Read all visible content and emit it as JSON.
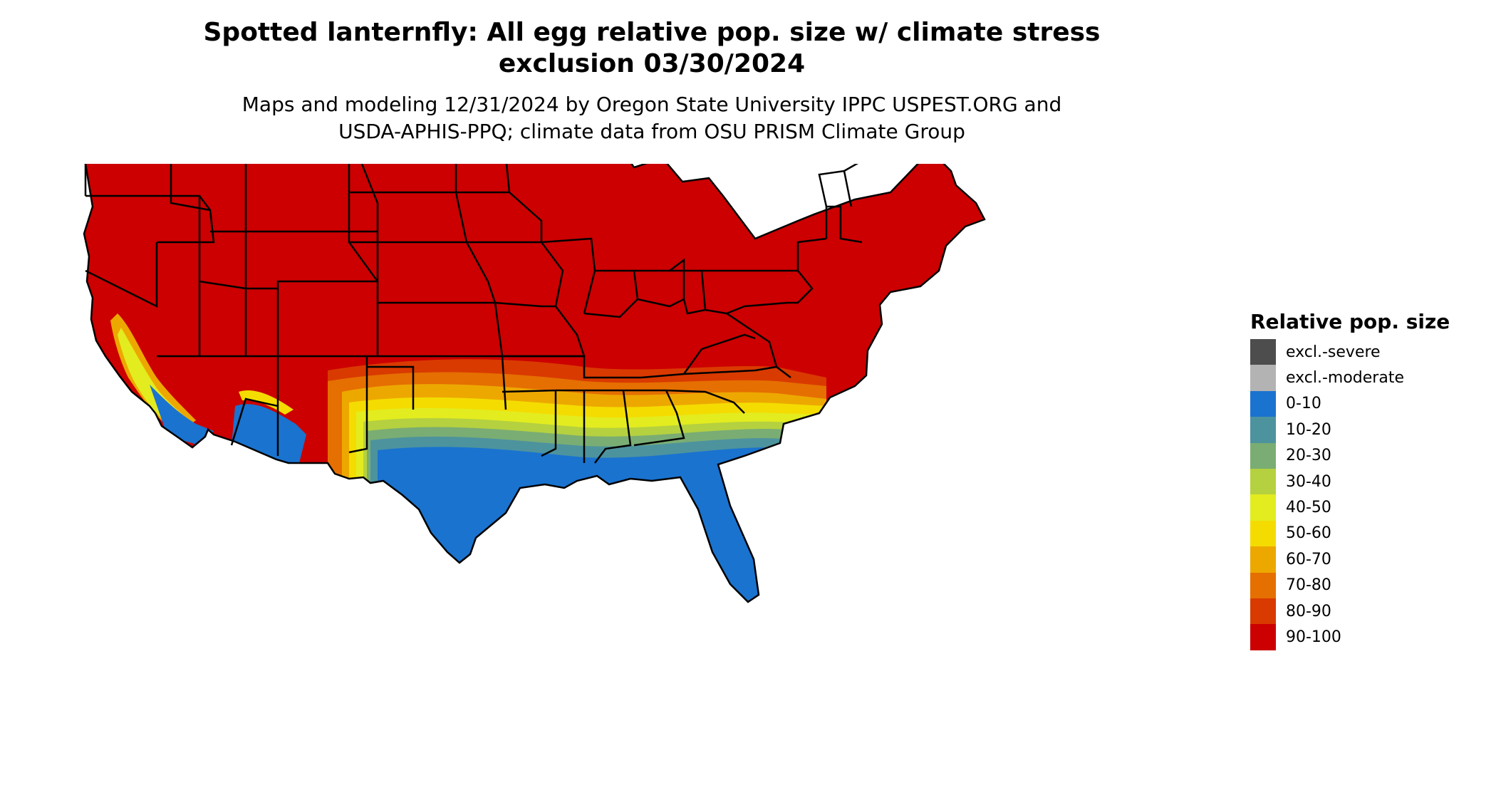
{
  "title": {
    "line1": "Spotted lanternfly: All egg relative pop. size w/ climate stress",
    "line2": "exclusion 03/30/2024"
  },
  "subtitle": {
    "line1": "Maps and modeling 12/31/2024 by Oregon State University IPPC USPEST.ORG and",
    "line2": "USDA-APHIS-PPQ; climate data from OSU PRISM Climate Group"
  },
  "legend": {
    "title": "Relative pop. size",
    "items": [
      {
        "label": "excl.-severe",
        "color": "#4d4d4d"
      },
      {
        "label": "excl.-moderate",
        "color": "#b3b3b3"
      },
      {
        "label": "0-10",
        "color": "#1a73cf"
      },
      {
        "label": "10-20",
        "color": "#4d939e"
      },
      {
        "label": "20-30",
        "color": "#7aad73"
      },
      {
        "label": "30-40",
        "color": "#b5d13f"
      },
      {
        "label": "40-50",
        "color": "#e3ec1f"
      },
      {
        "label": "50-60",
        "color": "#f4dc00"
      },
      {
        "label": "60-70",
        "color": "#eda800"
      },
      {
        "label": "70-80",
        "color": "#e56f00"
      },
      {
        "label": "80-90",
        "color": "#d93a00"
      },
      {
        "label": "90-100",
        "color": "#cc0000"
      }
    ]
  },
  "map": {
    "region": "Contiguous United States",
    "colors": {
      "high": "#cc0000",
      "band_80_90": "#d93a00",
      "band_70_80": "#e56f00",
      "band_60_70": "#eda800",
      "band_50_60": "#f4dc00",
      "band_40_50": "#e3ec1f",
      "band_30_40": "#b5d13f",
      "band_20_30": "#7aad73",
      "band_10_20": "#4d939e",
      "low": "#1a73cf",
      "border": "#000000"
    }
  }
}
